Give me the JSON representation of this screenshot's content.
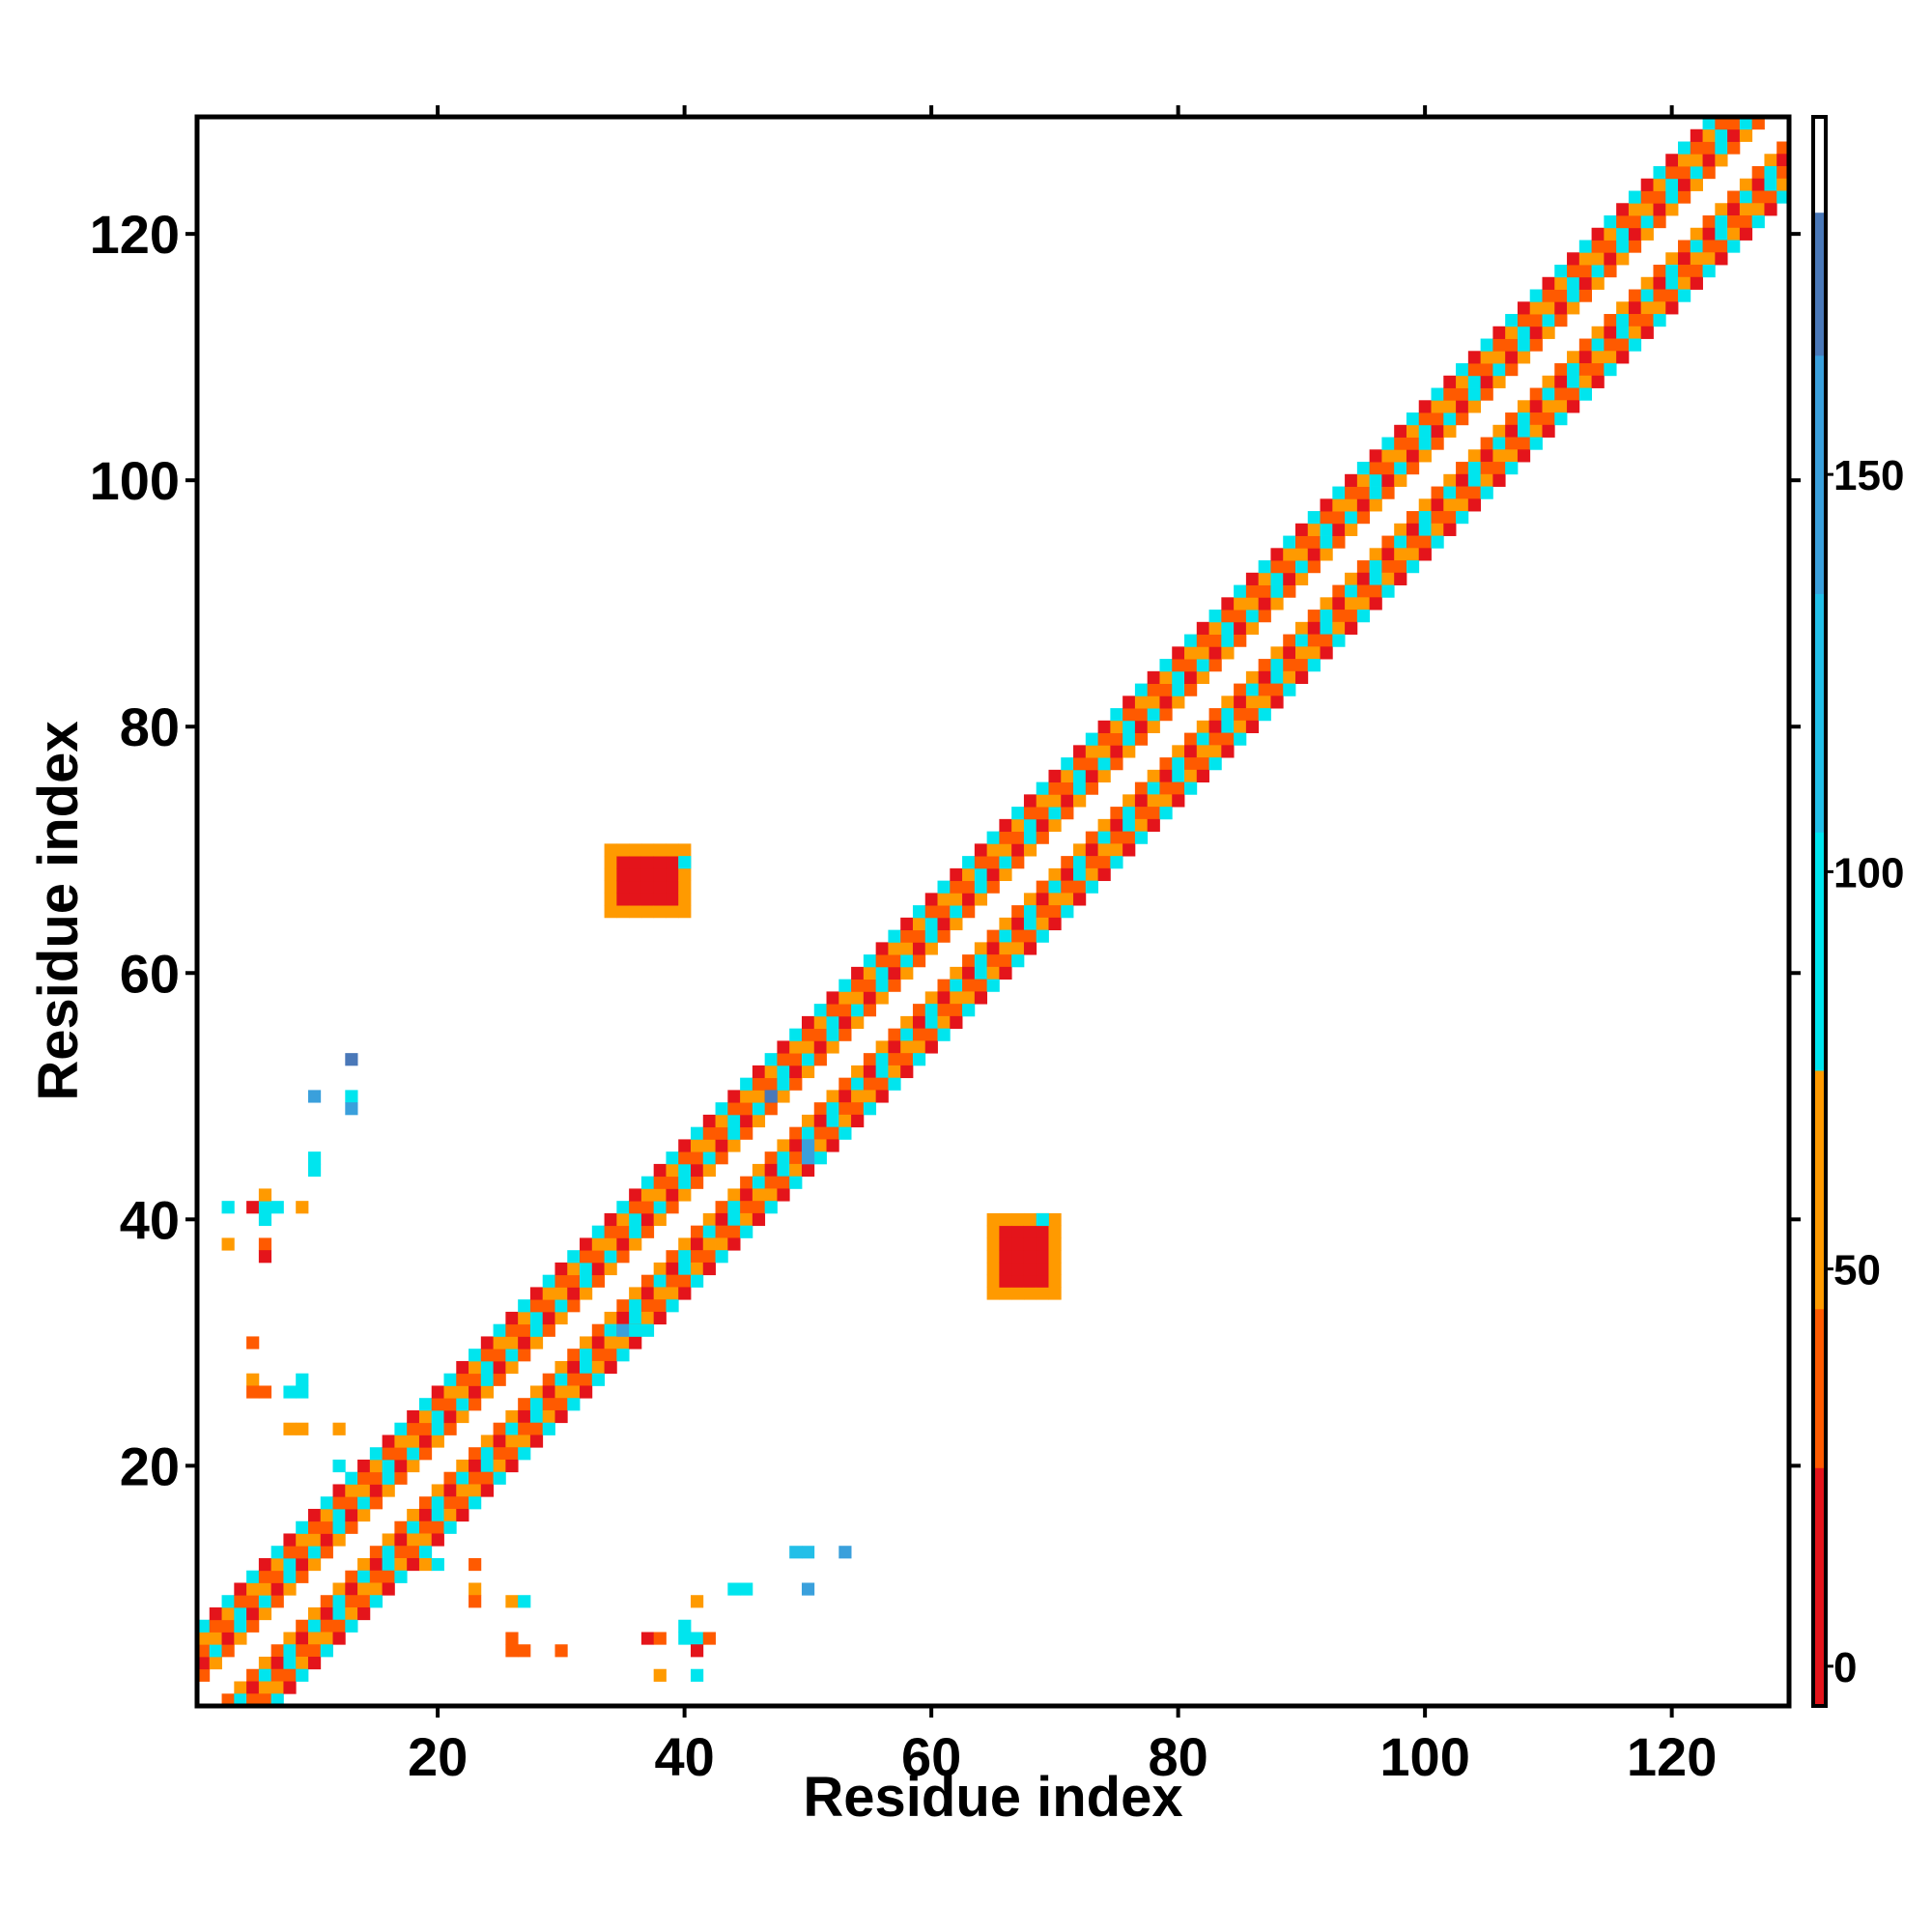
{
  "chart_data": {
    "type": "heatmap",
    "title": "",
    "xlabel": "Residue index",
    "ylabel": "Residue index",
    "xlim": [
      0.5,
      129.5
    ],
    "ylim": [
      0.5,
      129.5
    ],
    "xticks": [
      20,
      40,
      60,
      80,
      100,
      120
    ],
    "yticks": [
      20,
      40,
      60,
      80,
      100,
      120
    ],
    "grid": false,
    "colorbar": {
      "ticks": [
        0,
        50,
        100,
        150
      ],
      "range": [
        -5,
        195
      ],
      "segments": [
        {
          "from": -5,
          "to": 25,
          "color": "#e4141b"
        },
        {
          "from": 25,
          "to": 45,
          "color": "#ff5a00"
        },
        {
          "from": 45,
          "to": 75,
          "color": "#ff9a00"
        },
        {
          "from": 75,
          "to": 105,
          "color": "#00e5ee"
        },
        {
          "from": 105,
          "to": 135,
          "color": "#22bfe8"
        },
        {
          "from": 135,
          "to": 165,
          "color": "#3aa0dc"
        },
        {
          "from": 165,
          "to": 183,
          "color": "#4a78b8"
        },
        {
          "from": 183,
          "to": 195,
          "color": "#ffffff"
        }
      ]
    },
    "diagonal_band": {
      "n": 129,
      "min_offset": 2,
      "max_offset": 6
    },
    "contact_clusters": [
      {
        "x": [
          34,
          40
        ],
        "y": [
          65,
          70
        ]
      },
      {
        "x": [
          65,
          70
        ],
        "y": [
          34,
          40
        ]
      }
    ],
    "scatter_points": [
      {
        "x": 3,
        "y": 41,
        "v": 100
      },
      {
        "x": 5,
        "y": 41,
        "v": 5
      },
      {
        "x": 6,
        "y": 41,
        "v": 100
      },
      {
        "x": 7,
        "y": 41,
        "v": 100
      },
      {
        "x": 9,
        "y": 41,
        "v": 60
      },
      {
        "x": 6,
        "y": 42,
        "v": 60
      },
      {
        "x": 6,
        "y": 40,
        "v": 100
      },
      {
        "x": 6,
        "y": 38,
        "v": 35
      },
      {
        "x": 6,
        "y": 37,
        "v": 5
      },
      {
        "x": 3,
        "y": 38,
        "v": 60
      },
      {
        "x": 10,
        "y": 44,
        "v": 100
      },
      {
        "x": 10,
        "y": 45,
        "v": 100
      },
      {
        "x": 10,
        "y": 50,
        "v": 140
      },
      {
        "x": 13,
        "y": 50,
        "v": 100
      },
      {
        "x": 13,
        "y": 49,
        "v": 140
      },
      {
        "x": 13,
        "y": 53,
        "v": 170
      },
      {
        "x": 5,
        "y": 30,
        "v": 35
      },
      {
        "x": 5,
        "y": 27,
        "v": 60
      },
      {
        "x": 5,
        "y": 26,
        "v": 35
      },
      {
        "x": 6,
        "y": 26,
        "v": 35
      },
      {
        "x": 8,
        "y": 26,
        "v": 100
      },
      {
        "x": 9,
        "y": 27,
        "v": 100
      },
      {
        "x": 9,
        "y": 26,
        "v": 100
      },
      {
        "x": 8,
        "y": 23,
        "v": 60
      },
      {
        "x": 9,
        "y": 23,
        "v": 60
      },
      {
        "x": 12,
        "y": 23,
        "v": 60
      },
      {
        "x": 12,
        "y": 20,
        "v": 100
      },
      {
        "x": 19,
        "y": 12,
        "v": 60
      },
      {
        "x": 20,
        "y": 12,
        "v": 100
      },
      {
        "x": 23,
        "y": 12,
        "v": 35
      },
      {
        "x": 23,
        "y": 10,
        "v": 60
      },
      {
        "x": 23,
        "y": 9,
        "v": 35
      },
      {
        "x": 26,
        "y": 9,
        "v": 60
      },
      {
        "x": 27,
        "y": 9,
        "v": 100
      },
      {
        "x": 26,
        "y": 6,
        "v": 35
      },
      {
        "x": 26,
        "y": 5,
        "v": 35
      },
      {
        "x": 27,
        "y": 5,
        "v": 35
      },
      {
        "x": 30,
        "y": 5,
        "v": 35
      },
      {
        "x": 37,
        "y": 6,
        "v": 5
      },
      {
        "x": 38,
        "y": 6,
        "v": 35
      },
      {
        "x": 38,
        "y": 3,
        "v": 60
      },
      {
        "x": 40,
        "y": 7,
        "v": 100
      },
      {
        "x": 40,
        "y": 6,
        "v": 100
      },
      {
        "x": 41,
        "y": 6,
        "v": 100
      },
      {
        "x": 41,
        "y": 5,
        "v": 5
      },
      {
        "x": 42,
        "y": 6,
        "v": 35
      },
      {
        "x": 41,
        "y": 9,
        "v": 60
      },
      {
        "x": 41,
        "y": 3,
        "v": 100
      },
      {
        "x": 44,
        "y": 10,
        "v": 100
      },
      {
        "x": 45,
        "y": 10,
        "v": 100
      },
      {
        "x": 49,
        "y": 13,
        "v": 120
      },
      {
        "x": 50,
        "y": 13,
        "v": 120
      },
      {
        "x": 50,
        "y": 10,
        "v": 140
      },
      {
        "x": 53,
        "y": 13,
        "v": 160
      },
      {
        "x": 47,
        "y": 50,
        "v": 170
      },
      {
        "x": 50,
        "y": 46,
        "v": 140
      },
      {
        "x": 50,
        "y": 45,
        "v": 140
      },
      {
        "x": 69,
        "y": 40,
        "v": 100
      },
      {
        "x": 40,
        "y": 69,
        "v": 100
      },
      {
        "x": 35,
        "y": 31,
        "v": 140
      },
      {
        "x": 36,
        "y": 31,
        "v": 100
      }
    ]
  }
}
